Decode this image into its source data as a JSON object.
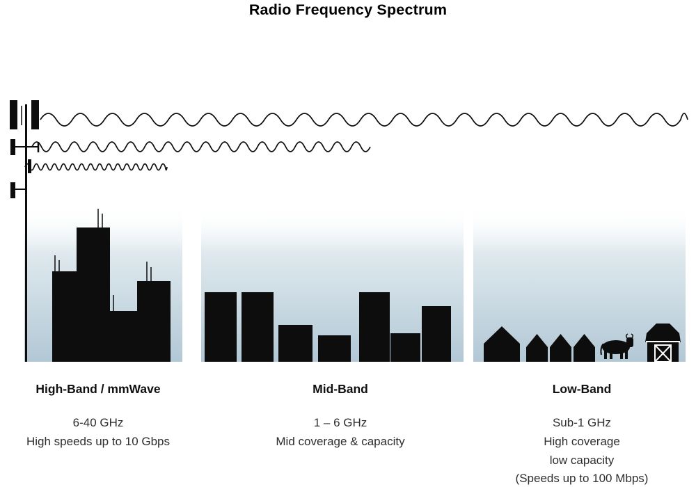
{
  "title": "Radio Frequency Spectrum",
  "bands": [
    {
      "name": "High-Band / mmWave",
      "lines": [
        "6-40 GHz",
        "High speeds up to 10 Gbps"
      ],
      "scene_icon": "skyscraper-city-icon",
      "wave": {
        "wavelength": "short",
        "reach": "shortest"
      }
    },
    {
      "name": "Mid-Band",
      "lines": [
        "1 – 6 GHz",
        "Mid coverage & capacity"
      ],
      "scene_icon": "mid-rise-buildings-icon",
      "wave": {
        "wavelength": "medium",
        "reach": "medium"
      }
    },
    {
      "name": "Low-Band",
      "lines": [
        "Sub-1 GHz",
        "High coverage",
        "low capacity",
        "(Speeds up to 100 Mbps)"
      ],
      "scene_icon": "houses-cow-barn-icon",
      "wave": {
        "wavelength": "long",
        "reach": "longest"
      }
    }
  ],
  "icons": [
    "cell-tower-icon",
    "skyscraper-city-icon",
    "mid-rise-buildings-icon",
    "house-icon",
    "cow-icon",
    "barn-icon"
  ],
  "colors": {
    "silhouette": "#0d0d0d",
    "sky_gradient_bottom": "#b2c8d5",
    "sky_gradient_top": "#ffffff",
    "text": "#2e2e2e"
  }
}
